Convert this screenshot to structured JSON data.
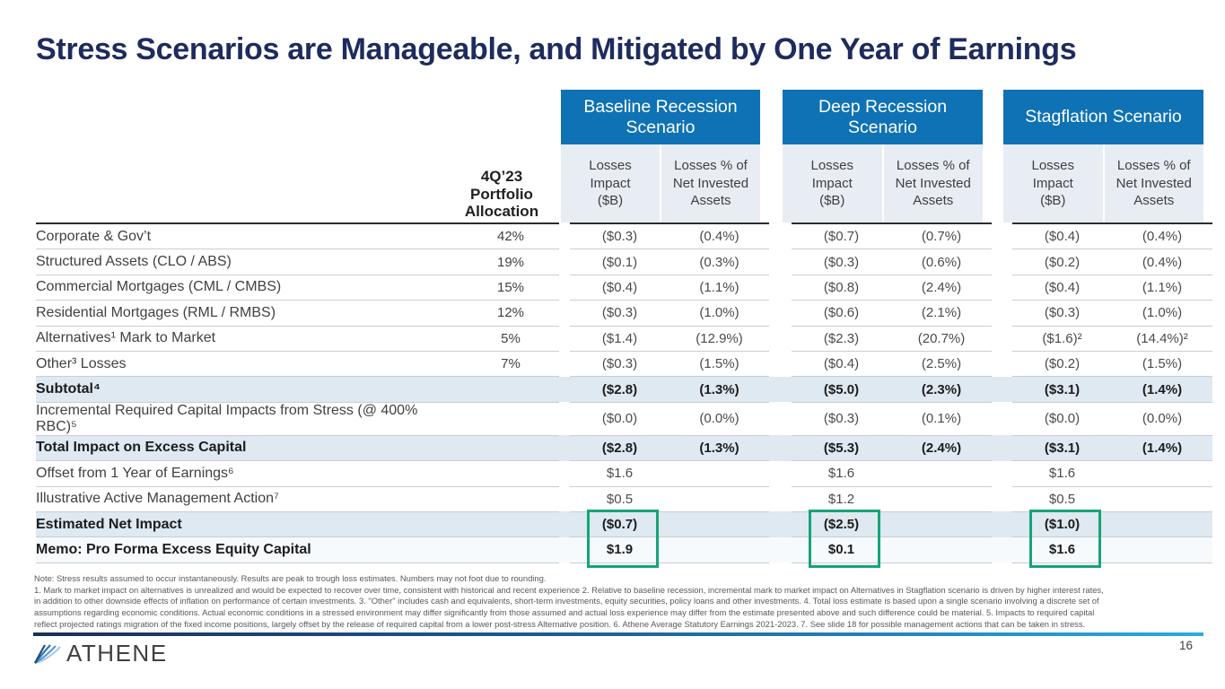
{
  "title": "Stress Scenarios are Manageable, and Mitigated by One Year of Earnings",
  "table": {
    "allocation_header_lines": [
      "4Q’23",
      "Portfolio",
      "Allocation"
    ],
    "scenarios": [
      {
        "name": "Baseline Recession Scenario"
      },
      {
        "name": "Deep Recession Scenario"
      },
      {
        "name": "Stagflation Scenario"
      }
    ],
    "sub_headers": {
      "impact_lines": [
        "Losses",
        "Impact",
        "($B)"
      ],
      "pct_lines": [
        "Losses % of",
        "Net Invested",
        "Assets"
      ]
    },
    "rows": [
      {
        "label": "Corporate & Gov’t",
        "alloc": "42%",
        "values": [
          "($0.3)",
          "(0.4%)",
          "($0.7)",
          "(0.7%)",
          "($0.4)",
          "(0.4%)"
        ],
        "emphasis": false,
        "highlight": false
      },
      {
        "label": "Structured Assets (CLO / ABS)",
        "alloc": "19%",
        "values": [
          "($0.1)",
          "(0.3%)",
          "($0.3)",
          "(0.6%)",
          "($0.2)",
          "(0.4%)"
        ],
        "emphasis": false,
        "highlight": false
      },
      {
        "label": "Commercial Mortgages (CML / CMBS)",
        "alloc": "15%",
        "values": [
          "($0.4)",
          "(1.1%)",
          "($0.8)",
          "(2.4%)",
          "($0.4)",
          "(1.1%)"
        ],
        "emphasis": false,
        "highlight": false
      },
      {
        "label": "Residential Mortgages (RML / RMBS)",
        "alloc": "12%",
        "values": [
          "($0.3)",
          "(1.0%)",
          "($0.6)",
          "(2.1%)",
          "($0.3)",
          "(1.0%)"
        ],
        "emphasis": false,
        "highlight": false
      },
      {
        "label": "Alternatives¹ Mark to Market",
        "alloc": "5%",
        "values": [
          "($1.4)",
          "(12.9%)",
          "($2.3)",
          "(20.7%)",
          "($1.6)²",
          "(14.4%)²"
        ],
        "emphasis": false,
        "highlight": false
      },
      {
        "label": "Other³ Losses",
        "alloc": "7%",
        "values": [
          "($0.3)",
          "(1.5%)",
          "($0.4)",
          "(2.5%)",
          "($0.2)",
          "(1.5%)"
        ],
        "emphasis": false,
        "highlight": false
      },
      {
        "label": "Subtotal⁴",
        "alloc": "",
        "values": [
          "($2.8)",
          "(1.3%)",
          "($5.0)",
          "(2.3%)",
          "($3.1)",
          "(1.4%)"
        ],
        "emphasis": true,
        "highlight": true
      },
      {
        "label": "Incremental Required Capital Impacts from Stress (@ 400% RBC)⁵",
        "alloc": "",
        "values": [
          "($0.0)",
          "(0.0%)",
          "($0.3)",
          "(0.1%)",
          "($0.0)",
          "(0.0%)"
        ],
        "emphasis": false,
        "highlight": false
      },
      {
        "label": "Total Impact on Excess Capital",
        "alloc": "",
        "values": [
          "($2.8)",
          "(1.3%)",
          "($5.3)",
          "(2.4%)",
          "($3.1)",
          "(1.4%)"
        ],
        "emphasis": true,
        "highlight": true
      },
      {
        "label": "Offset from 1 Year of Earnings⁶",
        "alloc": "",
        "values": [
          "$1.6",
          "",
          "$1.6",
          "",
          "$1.6",
          ""
        ],
        "emphasis": false,
        "highlight": false
      },
      {
        "label": "Illustrative Active Management Action⁷",
        "alloc": "",
        "values": [
          "$0.5",
          "",
          "$1.2",
          "",
          "$0.5",
          ""
        ],
        "emphasis": false,
        "highlight": false
      },
      {
        "label": "Estimated Net Impact",
        "alloc": "",
        "values": [
          "($0.7)",
          "",
          "($2.5)",
          "",
          "($1.0)",
          ""
        ],
        "emphasis": true,
        "highlight": true
      },
      {
        "label": "Memo: Pro Forma Excess Equity Capital",
        "alloc": "",
        "values": [
          "$1.9",
          "",
          "$0.1",
          "",
          "$1.6",
          ""
        ],
        "emphasis": true,
        "highlight": false,
        "memo": true
      }
    ]
  },
  "footnotes": [
    "Note: Stress results assumed to occur instantaneously. Results are peak to trough loss estimates. Numbers may not foot due to rounding.",
    "1. Mark to market impact on alternatives is unrealized and would be expected to recover over time, consistent with historical and recent experience 2. Relative to baseline recession, incremental mark to market impact on Alternatives in Stagflation scenario is driven by higher interest rates,",
    "in addition to other downside effects of inflation on performance of certain investments. 3. \"Other\" includes cash and equivalents, short-term investments, equity securities, policy loans and other investments. 4. Total loss estimate is based upon a single scenario involving a discrete set of",
    "assumptions regarding economic conditions. Actual economic conditions in a stressed environment may differ significantly from those assumed and actual loss experience may differ from the estimate presented above and such difference could be material. 5. Impacts to required capital",
    "reflect projected ratings migration of the fixed income positions, largely offset by the release of required capital from a lower post-stress Alternative position. 6. Athene Average Statutory Earnings 2021-2023. 7. See slide 18 for possible management actions that can be taken in stress."
  ],
  "footer": {
    "brand": "ATHENE",
    "page": "16"
  },
  "colors": {
    "title": "#1e2b5e",
    "scenario_header_bg": "#0f72b5",
    "subheader_bg": "#e8edf3",
    "highlight_row_bg": "#dee9f1",
    "green_box": "#17a379",
    "footer_rule_start": "#1a3055",
    "footer_rule_end": "#29abe2"
  }
}
